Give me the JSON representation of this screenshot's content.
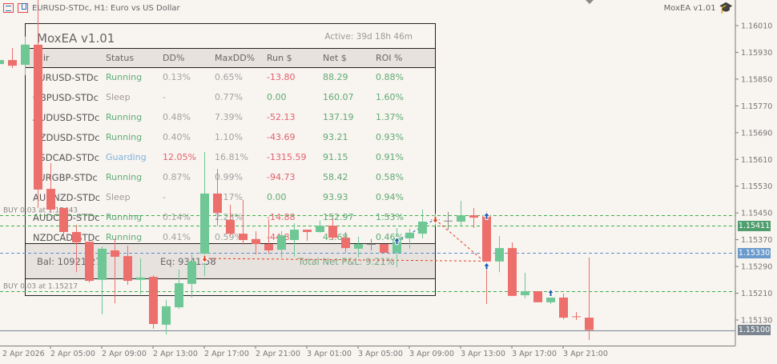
{
  "window": {
    "symbol_title": "EURUSD-STDc, H1:  Euro vs US Dollar",
    "ea_label": "MoxEA v1.01"
  },
  "panel": {
    "title": "MoxEA v1.01",
    "active": "Active: 39d 18h 46m",
    "headers": {
      "pair": "Pair",
      "status": "Status",
      "dd": "DD%",
      "maxdd": "MaxDD%",
      "run": "Run $",
      "net": "Net $",
      "roi": "ROI %"
    },
    "rows": [
      {
        "pair": "EURUSD-STDc",
        "status": "Running",
        "dd": "0.13%",
        "maxdd": "0.65%",
        "run": "-13.80",
        "net": "88.29",
        "roi": "0.88%"
      },
      {
        "pair": "GBPUSD-STDc",
        "status": "Sleep",
        "dd": "-",
        "maxdd": "0.77%",
        "run": "0.00",
        "net": "160.07",
        "roi": "1.60%"
      },
      {
        "pair": "AUDUSD-STDc",
        "status": "Running",
        "dd": "0.48%",
        "maxdd": "7.39%",
        "run": "-52.13",
        "net": "137.19",
        "roi": "1.37%"
      },
      {
        "pair": "NZDUSD-STDc",
        "status": "Running",
        "dd": "0.40%",
        "maxdd": "1.10%",
        "run": "-43.69",
        "net": "93.21",
        "roi": "0.93%"
      },
      {
        "pair": "USDCAD-STDc",
        "status": "Guarding",
        "dd": "12.05%",
        "maxdd": "16.81%",
        "run": "-1315.59",
        "net": "91.15",
        "roi": "0.91%"
      },
      {
        "pair": "EURGBP-STDc",
        "status": "Running",
        "dd": "0.87%",
        "maxdd": "0.99%",
        "run": "-94.73",
        "net": "58.42",
        "roi": "0.58%"
      },
      {
        "pair": "AUDNZD-STDc",
        "status": "Sleep",
        "dd": "-",
        "maxdd": "5.17%",
        "run": "0.00",
        "net": "93.93",
        "roi": "0.94%"
      },
      {
        "pair": "AUDCAD-STDc",
        "status": "Running",
        "dd": "0.14%",
        "maxdd": "2.23%",
        "run": "-14.88",
        "net": "152.97",
        "roi": "1.53%"
      },
      {
        "pair": "NZDCAD-STDc",
        "status": "Running",
        "dd": "0.41%",
        "maxdd": "0.59%",
        "run": "-44.87",
        "net": "45.68",
        "roi": "0.46%"
      }
    ],
    "footer": {
      "balance": "Bal: 10921.27",
      "equity": "Eq: 9341.58",
      "total_pnl": "Total Net P&L: 9.21%"
    }
  },
  "colors": {
    "bull": "#6ec795",
    "bear": "#ec6f6c",
    "doji": "#8a8a8a",
    "running": "#5fae78",
    "sleep": "#a39a9a",
    "guarding": "#7fb3da",
    "neg": "#e2606c",
    "pos": "#5faa74",
    "muted": "#a2a2a2"
  },
  "price_axis": {
    "ticks": [
      "1.16010",
      "1.15930",
      "1.15850",
      "1.15770",
      "1.15690",
      "1.15610",
      "1.15530",
      "1.15450",
      "1.15370",
      "1.15290",
      "1.15210",
      "1.15130"
    ]
  },
  "price_tags": [
    {
      "price": "1.15411",
      "color": "#4f9e6e"
    },
    {
      "price": "1.15330",
      "color": "#6a9bcc"
    },
    {
      "price": "1.15100",
      "color": "#7a8590"
    }
  ],
  "order_lines": [
    {
      "label": "BUY 0.03 at 1.15443",
      "price": 1.15443,
      "color": "#3db04a"
    },
    {
      "label": "",
      "price": 1.15411,
      "color": "#3db04a"
    },
    {
      "label": "",
      "price": 1.1533,
      "color": "#5a8fcf"
    },
    {
      "label": "BUY 0.03 at 1.15217",
      "price": 1.15217,
      "color": "#3db04a"
    }
  ],
  "time_axis": [
    {
      "label": "2 Apr 2026",
      "index": -1
    },
    {
      "label": "2 Apr 05:00",
      "index": 4
    },
    {
      "label": "2 Apr 09:00",
      "index": 8
    },
    {
      "label": "2 Apr 13:00",
      "index": 12
    },
    {
      "label": "2 Apr 17:00",
      "index": 16
    },
    {
      "label": "2 Apr 21:00",
      "index": 20
    },
    {
      "label": "3 Apr 01:00",
      "index": 24
    },
    {
      "label": "3 Apr 05:00",
      "index": 28
    },
    {
      "label": "3 Apr 09:00",
      "index": 32
    },
    {
      "label": "3 Apr 13:00",
      "index": 36
    },
    {
      "label": "3 Apr 17:00",
      "index": 40
    },
    {
      "label": "3 Apr 21:00",
      "index": 44
    }
  ],
  "chart_data": {
    "type": "candlestick",
    "symbol": "EURUSD-STDc",
    "timeframe": "H1",
    "ylim": [
      1.1505,
      1.1608
    ],
    "candles_ohlc": [
      [
        1.15895,
        1.1591,
        1.1589,
        1.15907
      ],
      [
        1.15907,
        1.15943,
        1.15883,
        1.1589
      ],
      [
        1.15893,
        1.15977,
        1.15862,
        1.15953
      ],
      [
        1.15953,
        1.16087,
        1.15465,
        1.1552
      ],
      [
        1.15522,
        1.15599,
        1.15455,
        1.1546
      ],
      [
        1.15465,
        1.15465,
        1.15369,
        1.15393
      ],
      [
        1.15393,
        1.15415,
        1.15273,
        1.15362
      ],
      [
        1.15364,
        1.15364,
        1.15242,
        1.15247
      ],
      [
        1.1525,
        1.1535,
        1.15147,
        1.15343
      ],
      [
        1.15338,
        1.15372,
        1.1518,
        1.15319
      ],
      [
        1.15321,
        1.15352,
        1.15235,
        1.15247
      ],
      [
        1.1525,
        1.15314,
        1.15207,
        1.15257
      ],
      [
        1.15259,
        1.15264,
        1.15104,
        1.15118
      ],
      [
        1.15116,
        1.1519,
        1.15087,
        1.15171
      ],
      [
        1.15168,
        1.15281,
        1.15163,
        1.1524
      ],
      [
        1.15238,
        1.15326,
        1.15197,
        1.15305
      ],
      [
        1.15328,
        1.15632,
        1.15262,
        1.15508
      ],
      [
        1.15508,
        1.15582,
        1.15412,
        1.1545
      ],
      [
        1.15429,
        1.15474,
        1.15381,
        1.15388
      ],
      [
        1.15388,
        1.15489,
        1.15355,
        1.15369
      ],
      [
        1.15372,
        1.15395,
        1.15326,
        1.15357
      ],
      [
        1.15357,
        1.15431,
        1.15328,
        1.15338
      ],
      [
        1.1534,
        1.15395,
        1.15317,
        1.15383
      ],
      [
        1.15369,
        1.15419,
        1.15319,
        1.154
      ],
      [
        1.154,
        1.154,
        1.15367,
        1.15393
      ],
      [
        1.15393,
        1.15427,
        1.15391,
        1.15412
      ],
      [
        1.15412,
        1.15434,
        1.15369,
        1.15376
      ],
      [
        1.15376,
        1.15393,
        1.15331,
        1.15345
      ],
      [
        1.15343,
        1.15379,
        1.15317,
        1.15357
      ],
      [
        1.15357,
        1.15372,
        1.15338,
        1.15357
      ],
      [
        1.15357,
        1.15357,
        1.15331,
        1.15331
      ],
      [
        1.15331,
        1.15405,
        1.15288,
        1.15374
      ],
      [
        1.15374,
        1.15403,
        1.15343,
        1.15391
      ],
      [
        1.15388,
        1.1546,
        1.15374,
        1.15424
      ],
      [
        1.15431,
        1.15448,
        1.1541,
        1.15431
      ],
      [
        1.15427,
        1.15453,
        1.154,
        1.15427
      ],
      [
        1.15424,
        1.15486,
        1.1541,
        1.15443
      ],
      [
        1.15443,
        1.15465,
        1.15405,
        1.15436
      ],
      [
        1.15441,
        1.15455,
        1.15178,
        1.15305
      ],
      [
        1.15305,
        1.15381,
        1.15273,
        1.15345
      ],
      [
        1.15345,
        1.15362,
        1.15202,
        1.15202
      ],
      [
        1.15204,
        1.15271,
        1.15195,
        1.15216
      ],
      [
        1.15216,
        1.15216,
        1.15183,
        1.15183
      ],
      [
        1.15183,
        1.15197,
        1.15178,
        1.15197
      ],
      [
        1.15197,
        1.15209,
        1.15132,
        1.15137
      ],
      [
        1.15141,
        1.15154,
        1.1513,
        1.15139
      ],
      [
        1.15137,
        1.15317,
        1.1507,
        1.151
      ]
    ],
    "trade_markers": [
      {
        "index": 16,
        "price": 1.15314,
        "type": "sell"
      },
      {
        "index": 31,
        "price": 1.15365,
        "type": "buy"
      },
      {
        "index": 34,
        "price": 1.15431,
        "type": "sell"
      },
      {
        "index": 38,
        "price": 1.1544,
        "type": "buy"
      },
      {
        "index": 38,
        "price": 1.1529,
        "type": "buy"
      },
      {
        "index": 43,
        "price": 1.1521,
        "type": "buy"
      }
    ],
    "trade_links": [
      {
        "from": [
          16,
          1.15314
        ],
        "to": [
          38,
          1.15306
        ],
        "color": "#e0401e"
      },
      {
        "from": [
          34,
          1.15431
        ],
        "to": [
          38,
          1.153
        ],
        "color": "#e0401e"
      },
      {
        "from": [
          31,
          1.15365
        ],
        "to": [
          34,
          1.15431
        ],
        "color": "#2a5fb0"
      }
    ]
  }
}
